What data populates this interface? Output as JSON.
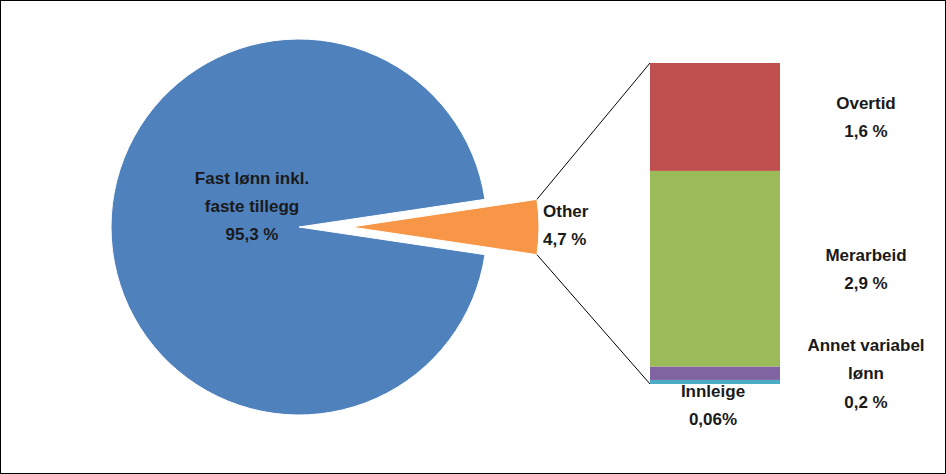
{
  "chart_data": [
    {
      "type": "pie",
      "categories": [
        "Fast lønn inkl. faste tillegg",
        "Other"
      ],
      "values": [
        95.3,
        4.7
      ],
      "value_labels": [
        "95,3 %",
        "4,7 %"
      ],
      "colors": [
        "#4f81bd",
        "#f79646"
      ],
      "data_labels": true
    },
    {
      "type": "bar",
      "stacked": true,
      "categories": [
        "Innleige",
        "Annet variabel lønn",
        "Merarbeid",
        "Overtid"
      ],
      "values": [
        0.06,
        0.2,
        2.9,
        1.6
      ],
      "value_labels": [
        "0,06%",
        "0,2 %",
        "2,9 %",
        "1,6 %"
      ],
      "colors": [
        "#4bacc6",
        "#8064a2",
        "#9bbb59",
        "#c0504d"
      ],
      "data_labels": true
    }
  ]
}
